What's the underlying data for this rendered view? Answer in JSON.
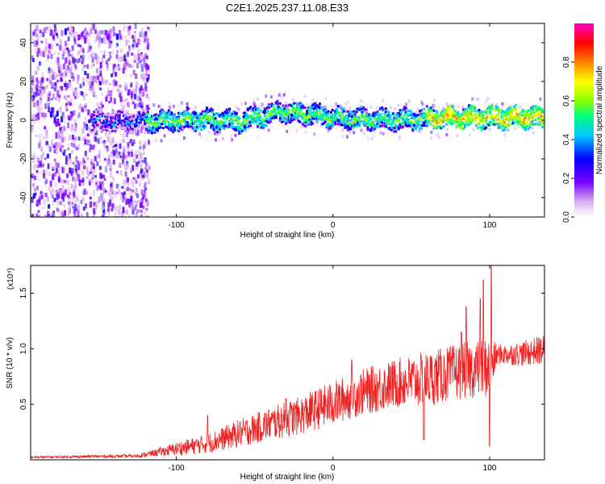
{
  "figure_title": "C2E1.2025.237.11.08.E33",
  "chart_data": [
    {
      "type": "heatmap",
      "title": "C2E1.2025.237.11.08.E33",
      "xlabel": "Height of straight line (km)",
      "ylabel": "Frequency (Hz)",
      "xlim": [
        -193,
        135
      ],
      "ylim": [
        -50,
        50
      ],
      "x_ticks": [
        -100,
        0,
        100
      ],
      "x_tick_labels": [
        "-100",
        "0",
        "100"
      ],
      "y_ticks": [
        -40,
        -20,
        0,
        20,
        40
      ],
      "y_tick_labels": [
        "-40",
        "-20",
        "0",
        "20",
        "40"
      ],
      "grid": false,
      "colorbar": {
        "label": "Normalized spectral amplitude",
        "range": [
          0,
          1
        ],
        "ticks": [
          0.0,
          0.2,
          0.4,
          0.6,
          0.8
        ],
        "tick_labels": [
          "0.0",
          "0.2",
          "0.4",
          "0.6",
          "0.8"
        ],
        "colormap": [
          "#ffffff",
          "#d7b0f0",
          "#7a00ff",
          "#0000ff",
          "#00c8ff",
          "#00ff80",
          "#8cff00",
          "#ffff00",
          "#ff8000",
          "#ff0000",
          "#ff00cc"
        ]
      },
      "ridge_center_hz": [
        {
          "x": -150,
          "y": 0
        },
        {
          "x": -110,
          "y": 0
        },
        {
          "x": -90,
          "y": 1
        },
        {
          "x": -60,
          "y": 0
        },
        {
          "x": -35,
          "y": 5
        },
        {
          "x": -20,
          "y": 4
        },
        {
          "x": 0,
          "y": 2
        },
        {
          "x": 20,
          "y": 1
        },
        {
          "x": 50,
          "y": 1
        },
        {
          "x": 70,
          "y": 2
        },
        {
          "x": 100,
          "y": 2
        },
        {
          "x": 135,
          "y": 2
        }
      ]
    },
    {
      "type": "line",
      "xlabel": "Height of straight line (km)",
      "ylabel": "SNR (10 * v/v)",
      "y_scale_label": "(x10⁴)",
      "xlim": [
        -193,
        135
      ],
      "ylim": [
        0,
        1.75
      ],
      "x_ticks": [
        -100,
        0,
        100
      ],
      "x_tick_labels": [
        "-100",
        "0",
        "100"
      ],
      "y_ticks": [
        0.5,
        1.0,
        1.5
      ],
      "y_tick_labels": [
        "0.5",
        "1.0",
        "1.5"
      ],
      "grid": false,
      "series": [
        {
          "name": "SNR",
          "color": "#ee2222",
          "envelope": [
            {
              "x": -193,
              "base": 0.02,
              "amp": 0.02
            },
            {
              "x": -125,
              "base": 0.03,
              "amp": 0.03
            },
            {
              "x": -115,
              "base": 0.05,
              "amp": 0.06
            },
            {
              "x": -100,
              "base": 0.08,
              "amp": 0.12
            },
            {
              "x": -80,
              "base": 0.12,
              "amp": 0.18
            },
            {
              "x": -60,
              "base": 0.2,
              "amp": 0.25
            },
            {
              "x": -40,
              "base": 0.28,
              "amp": 0.3
            },
            {
              "x": -20,
              "base": 0.35,
              "amp": 0.35
            },
            {
              "x": 0,
              "base": 0.45,
              "amp": 0.4
            },
            {
              "x": 20,
              "base": 0.55,
              "amp": 0.42
            },
            {
              "x": 40,
              "base": 0.62,
              "amp": 0.45
            },
            {
              "x": 60,
              "base": 0.65,
              "amp": 0.5
            },
            {
              "x": 80,
              "base": 0.72,
              "amp": 0.5
            },
            {
              "x": 100,
              "base": 0.75,
              "amp": 0.55
            },
            {
              "x": 105,
              "base": 0.92,
              "amp": 0.18
            },
            {
              "x": 120,
              "base": 0.92,
              "amp": 0.22
            },
            {
              "x": 135,
              "base": 0.95,
              "amp": 0.28
            }
          ],
          "peaks": [
            {
              "x": 101,
              "y": 1.75
            },
            {
              "x": 96,
              "y": 1.62
            },
            {
              "x": 94,
              "y": 1.45
            },
            {
              "x": 85,
              "y": 1.38
            },
            {
              "x": 82,
              "y": 1.15
            },
            {
              "x": 100,
              "y": 0.12
            },
            {
              "x": 58,
              "y": 0.18
            },
            {
              "x": 12,
              "y": 0.9
            },
            {
              "x": -30,
              "y": 0.55
            },
            {
              "x": -80,
              "y": 0.4
            }
          ]
        }
      ]
    }
  ]
}
